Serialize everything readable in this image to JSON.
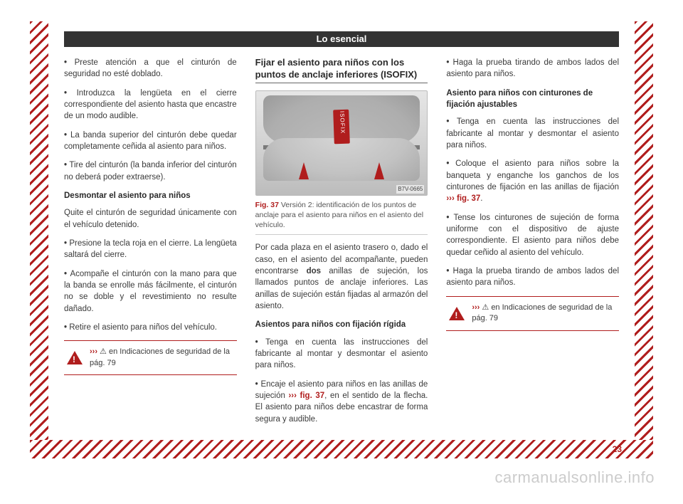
{
  "header": "Lo esencial",
  "page_number": "23",
  "watermark": "carmanualsonline.info",
  "col1": {
    "p1": "Preste atención a que el cinturón de seguridad no esté doblado.",
    "p2": "Introduzca la lengüeta en el cierre correspondiente del asiento hasta que encastre de un modo audible.",
    "p3": "La banda superior del cinturón debe quedar completamente ceñida al asiento para niños.",
    "p4": "Tire del cinturón (la banda inferior del cinturón no deberá poder extraerse).",
    "h4a": "Desmontar el asiento para niños",
    "p5": "Quite el cinturón de seguridad únicamente con el vehículo detenido.",
    "p6": "Presione la tecla roja en el cierre. La lengüeta saltará del cierre.",
    "p7": "Acompañe el cinturón con la mano para que la banda se enrolle más fácilmente, el cinturón no se doble y el revestimiento no resulte dañado.",
    "p8": "Retire el asiento para niños del vehículo.",
    "warn": {
      "lead": "›››",
      "rest": " ⚠ en Indicaciones de seguridad de la pág. 79"
    }
  },
  "col2": {
    "h3": "Fijar el asiento para niños con los puntos de anclaje inferiores (ISOFIX)",
    "isofix_label": "ISOFIX",
    "imgcode": "B7V-0665",
    "caption_label": "Fig. 37",
    "caption_rest": "  Versión 2: identificación de los puntos de anclaje para el asiento para niños en el asiento del vehículo.",
    "p1a": "Por cada plaza en el asiento trasero o, dado el caso, en el asiento del acompañante, pueden encontrarse ",
    "p1b": "dos",
    "p1c": " anillas de sujeción, los llamados puntos de anclaje inferiores. Las anillas de sujeción están fijadas al armazón del asiento.",
    "h4a": "Asientos para niños con fijación rígida",
    "p2": "Tenga en cuenta las instrucciones del fabricante al montar y desmontar el asiento para niños.",
    "p3a": "Encaje el asiento para niños en las anillas de sujeción ",
    "p3ref": "››› fig. 37",
    "p3b": ", en el sentido de la flecha. El asiento para niños debe encastrar de forma segura y audible."
  },
  "col3": {
    "p1": "Haga la prueba tirando de ambos lados del asiento para niños.",
    "h4a": "Asiento para niños con cinturones de fijación ajustables",
    "p2": "Tenga en cuenta las instrucciones del fabricante al montar y desmontar el asiento para niños.",
    "p3a": "Coloque el asiento para niños sobre la banqueta y enganche los ganchos de los cinturones de fijación en las anillas de fijación ",
    "p3ref": "››› fig. 37",
    "p3b": ".",
    "p4": "Tense los cinturones de sujeción de forma uniforme con el dispositivo de ajuste correspondiente. El asiento para niños debe quedar ceñido al asiento del vehículo.",
    "p5": "Haga la prueba tirando de ambos lados del asiento para niños.",
    "warn": {
      "lead": "›››",
      "rest": " ⚠ en Indicaciones de seguridad de la pág. 79"
    }
  }
}
